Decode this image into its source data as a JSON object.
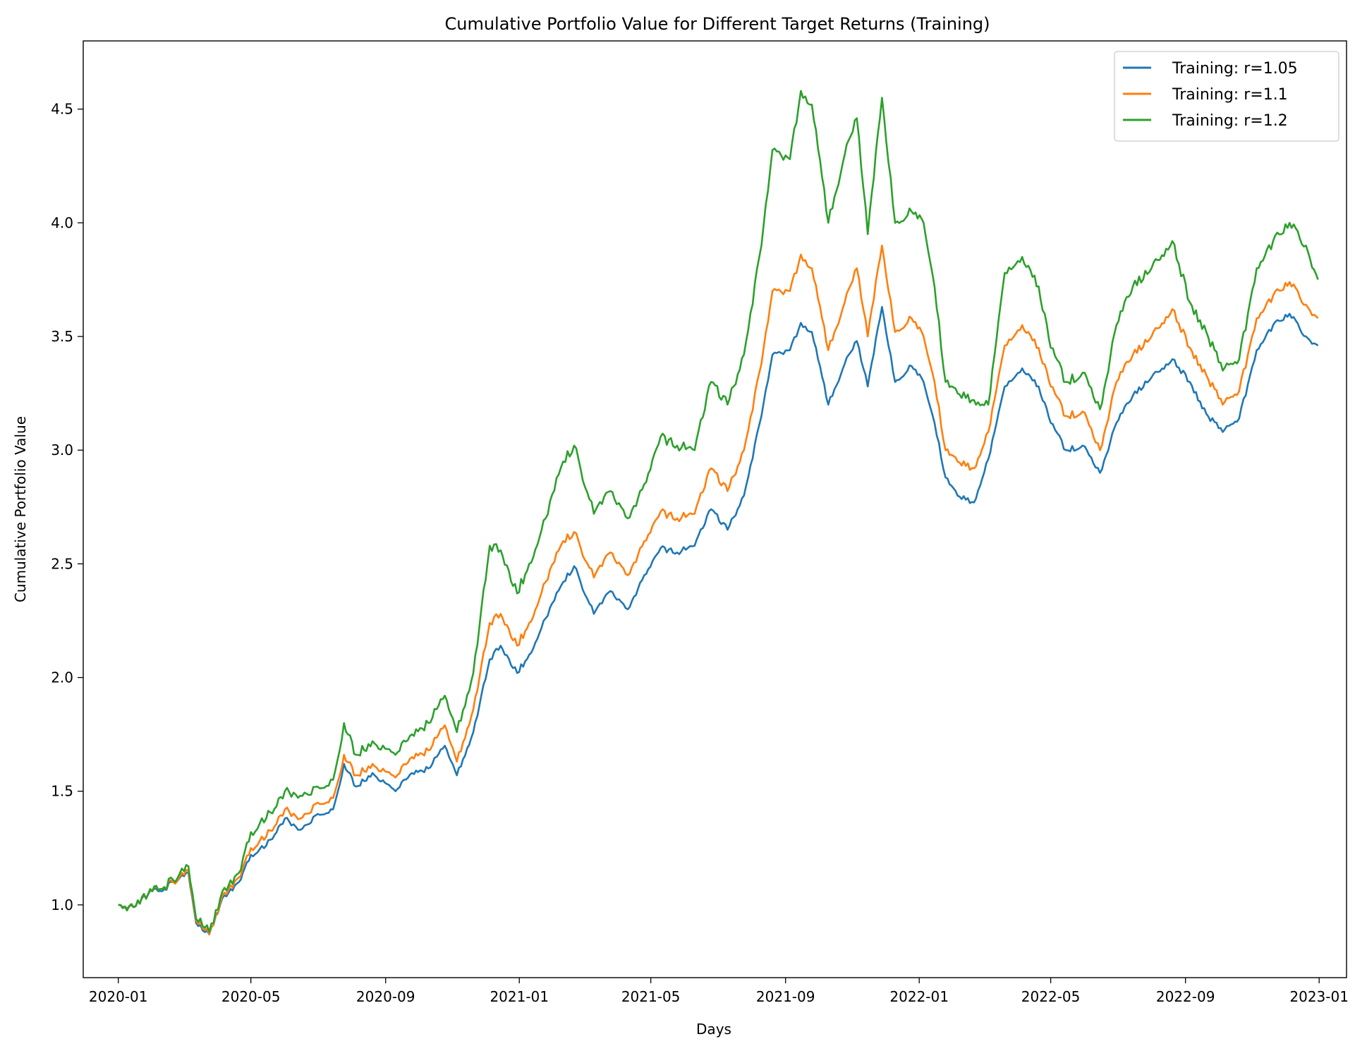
{
  "chart_data": {
    "type": "line",
    "title": "Cumulative Portfolio Value for Different Target Returns (Training)",
    "xlabel": "Days",
    "ylabel": "Cumulative Portfolio Value",
    "xlim": [
      "2019-11-30",
      "2023-01-26"
    ],
    "ylim": [
      0.68,
      4.8
    ],
    "xticks": [
      "2020-01",
      "2020-05",
      "2020-09",
      "2021-01",
      "2021-05",
      "2021-09",
      "2022-01",
      "2022-05",
      "2022-09",
      "2023-01"
    ],
    "yticks": [
      1.0,
      1.5,
      2.0,
      2.5,
      3.0,
      3.5,
      4.0,
      4.5
    ],
    "legend_position": "upper right",
    "grid": false,
    "series": [
      {
        "name": "Training: r=1.05",
        "color": "#1f77b4",
        "points": [
          [
            "2020-01-01",
            1.0
          ],
          [
            "2020-01-15",
            0.99
          ],
          [
            "2020-02-01",
            1.06
          ],
          [
            "2020-02-10",
            1.06
          ],
          [
            "2020-02-20",
            1.1
          ],
          [
            "2020-03-05",
            1.14
          ],
          [
            "2020-03-12",
            0.92
          ],
          [
            "2020-03-20",
            0.88
          ],
          [
            "2020-03-24",
            0.87
          ],
          [
            "2020-04-05",
            1.03
          ],
          [
            "2020-04-20",
            1.1
          ],
          [
            "2020-05-01",
            1.22
          ],
          [
            "2020-05-15",
            1.26
          ],
          [
            "2020-06-01",
            1.38
          ],
          [
            "2020-06-15",
            1.33
          ],
          [
            "2020-07-01",
            1.4
          ],
          [
            "2020-07-15",
            1.42
          ],
          [
            "2020-07-25",
            1.62
          ],
          [
            "2020-08-05",
            1.52
          ],
          [
            "2020-08-20",
            1.58
          ],
          [
            "2020-09-10",
            1.5
          ],
          [
            "2020-09-25",
            1.58
          ],
          [
            "2020-10-10",
            1.6
          ],
          [
            "2020-10-25",
            1.7
          ],
          [
            "2020-11-05",
            1.57
          ],
          [
            "2020-11-20",
            1.76
          ],
          [
            "2020-12-05",
            2.08
          ],
          [
            "2020-12-15",
            2.14
          ],
          [
            "2020-12-30",
            2.02
          ],
          [
            "2021-01-10",
            2.1
          ],
          [
            "2021-01-25",
            2.26
          ],
          [
            "2021-02-10",
            2.42
          ],
          [
            "2021-02-20",
            2.49
          ],
          [
            "2021-03-10",
            2.28
          ],
          [
            "2021-03-25",
            2.38
          ],
          [
            "2021-04-10",
            2.3
          ],
          [
            "2021-04-25",
            2.45
          ],
          [
            "2021-05-10",
            2.57
          ],
          [
            "2021-05-25",
            2.55
          ],
          [
            "2021-06-10",
            2.58
          ],
          [
            "2021-06-25",
            2.74
          ],
          [
            "2021-07-10",
            2.65
          ],
          [
            "2021-07-25",
            2.8
          ],
          [
            "2021-08-10",
            3.15
          ],
          [
            "2021-08-20",
            3.42
          ],
          [
            "2021-09-05",
            3.44
          ],
          [
            "2021-09-15",
            3.56
          ],
          [
            "2021-09-25",
            3.52
          ],
          [
            "2021-10-10",
            3.2
          ],
          [
            "2021-10-25",
            3.38
          ],
          [
            "2021-11-05",
            3.48
          ],
          [
            "2021-11-15",
            3.28
          ],
          [
            "2021-11-28",
            3.63
          ],
          [
            "2021-12-10",
            3.3
          ],
          [
            "2021-12-25",
            3.37
          ],
          [
            "2022-01-05",
            3.3
          ],
          [
            "2022-01-15",
            3.12
          ],
          [
            "2022-01-25",
            2.88
          ],
          [
            "2022-02-05",
            2.8
          ],
          [
            "2022-02-20",
            2.77
          ],
          [
            "2022-03-05",
            2.96
          ],
          [
            "2022-03-20",
            3.28
          ],
          [
            "2022-04-05",
            3.36
          ],
          [
            "2022-04-20",
            3.28
          ],
          [
            "2022-05-01",
            3.12
          ],
          [
            "2022-05-15",
            3.0
          ],
          [
            "2022-05-30",
            3.02
          ],
          [
            "2022-06-15",
            2.9
          ],
          [
            "2022-06-30",
            3.12
          ],
          [
            "2022-07-15",
            3.24
          ],
          [
            "2022-08-01",
            3.32
          ],
          [
            "2022-08-20",
            3.4
          ],
          [
            "2022-09-05",
            3.3
          ],
          [
            "2022-09-20",
            3.16
          ],
          [
            "2022-10-05",
            3.08
          ],
          [
            "2022-10-20",
            3.14
          ],
          [
            "2022-11-05",
            3.44
          ],
          [
            "2022-11-20",
            3.55
          ],
          [
            "2022-12-05",
            3.6
          ],
          [
            "2022-12-20",
            3.5
          ],
          [
            "2022-12-31",
            3.46
          ]
        ]
      },
      {
        "name": "Training: r=1.1",
        "color": "#ff7f0e",
        "points": [
          [
            "2020-01-01",
            1.0
          ],
          [
            "2020-01-15",
            0.99
          ],
          [
            "2020-02-01",
            1.06
          ],
          [
            "2020-02-10",
            1.07
          ],
          [
            "2020-02-20",
            1.1
          ],
          [
            "2020-03-05",
            1.15
          ],
          [
            "2020-03-12",
            0.93
          ],
          [
            "2020-03-20",
            0.89
          ],
          [
            "2020-03-24",
            0.87
          ],
          [
            "2020-04-05",
            1.04
          ],
          [
            "2020-04-20",
            1.12
          ],
          [
            "2020-05-01",
            1.25
          ],
          [
            "2020-05-15",
            1.3
          ],
          [
            "2020-06-01",
            1.42
          ],
          [
            "2020-06-15",
            1.38
          ],
          [
            "2020-07-01",
            1.45
          ],
          [
            "2020-07-15",
            1.47
          ],
          [
            "2020-07-25",
            1.66
          ],
          [
            "2020-08-05",
            1.57
          ],
          [
            "2020-08-20",
            1.62
          ],
          [
            "2020-09-10",
            1.56
          ],
          [
            "2020-09-25",
            1.65
          ],
          [
            "2020-10-10",
            1.68
          ],
          [
            "2020-10-25",
            1.79
          ],
          [
            "2020-11-05",
            1.63
          ],
          [
            "2020-11-20",
            1.86
          ],
          [
            "2020-12-05",
            2.24
          ],
          [
            "2020-12-15",
            2.28
          ],
          [
            "2020-12-30",
            2.14
          ],
          [
            "2021-01-10",
            2.24
          ],
          [
            "2021-01-25",
            2.42
          ],
          [
            "2021-02-10",
            2.6
          ],
          [
            "2021-02-20",
            2.64
          ],
          [
            "2021-03-10",
            2.44
          ],
          [
            "2021-03-25",
            2.55
          ],
          [
            "2021-04-10",
            2.45
          ],
          [
            "2021-04-25",
            2.6
          ],
          [
            "2021-05-10",
            2.73
          ],
          [
            "2021-05-25",
            2.7
          ],
          [
            "2021-06-10",
            2.72
          ],
          [
            "2021-06-25",
            2.92
          ],
          [
            "2021-07-10",
            2.82
          ],
          [
            "2021-07-25",
            3.0
          ],
          [
            "2021-08-10",
            3.38
          ],
          [
            "2021-08-20",
            3.7
          ],
          [
            "2021-09-05",
            3.7
          ],
          [
            "2021-09-15",
            3.86
          ],
          [
            "2021-09-25",
            3.8
          ],
          [
            "2021-10-10",
            3.44
          ],
          [
            "2021-10-25",
            3.65
          ],
          [
            "2021-11-05",
            3.8
          ],
          [
            "2021-11-15",
            3.5
          ],
          [
            "2021-11-28",
            3.9
          ],
          [
            "2021-12-10",
            3.52
          ],
          [
            "2021-12-25",
            3.58
          ],
          [
            "2022-01-05",
            3.5
          ],
          [
            "2022-01-15",
            3.3
          ],
          [
            "2022-01-25",
            3.0
          ],
          [
            "2022-02-05",
            2.95
          ],
          [
            "2022-02-20",
            2.92
          ],
          [
            "2022-03-05",
            3.08
          ],
          [
            "2022-03-20",
            3.46
          ],
          [
            "2022-04-05",
            3.55
          ],
          [
            "2022-04-20",
            3.45
          ],
          [
            "2022-05-01",
            3.28
          ],
          [
            "2022-05-15",
            3.15
          ],
          [
            "2022-05-30",
            3.17
          ],
          [
            "2022-06-15",
            3.0
          ],
          [
            "2022-06-30",
            3.3
          ],
          [
            "2022-07-15",
            3.42
          ],
          [
            "2022-08-01",
            3.5
          ],
          [
            "2022-08-20",
            3.62
          ],
          [
            "2022-09-05",
            3.45
          ],
          [
            "2022-09-20",
            3.33
          ],
          [
            "2022-10-05",
            3.2
          ],
          [
            "2022-10-20",
            3.26
          ],
          [
            "2022-11-05",
            3.58
          ],
          [
            "2022-11-20",
            3.68
          ],
          [
            "2022-12-05",
            3.74
          ],
          [
            "2022-12-20",
            3.64
          ],
          [
            "2022-12-31",
            3.58
          ]
        ]
      },
      {
        "name": "Training: r=1.2",
        "color": "#2ca02c",
        "points": [
          [
            "2020-01-01",
            1.0
          ],
          [
            "2020-01-15",
            0.99
          ],
          [
            "2020-02-01",
            1.06
          ],
          [
            "2020-02-10",
            1.07
          ],
          [
            "2020-02-20",
            1.11
          ],
          [
            "2020-03-05",
            1.17
          ],
          [
            "2020-03-12",
            0.94
          ],
          [
            "2020-03-20",
            0.9
          ],
          [
            "2020-03-24",
            0.88
          ],
          [
            "2020-04-05",
            1.06
          ],
          [
            "2020-04-20",
            1.14
          ],
          [
            "2020-05-01",
            1.32
          ],
          [
            "2020-05-15",
            1.38
          ],
          [
            "2020-06-01",
            1.5
          ],
          [
            "2020-06-15",
            1.48
          ],
          [
            "2020-07-01",
            1.52
          ],
          [
            "2020-07-15",
            1.55
          ],
          [
            "2020-07-25",
            1.8
          ],
          [
            "2020-08-05",
            1.66
          ],
          [
            "2020-08-20",
            1.72
          ],
          [
            "2020-09-10",
            1.66
          ],
          [
            "2020-09-25",
            1.75
          ],
          [
            "2020-10-10",
            1.8
          ],
          [
            "2020-10-25",
            1.92
          ],
          [
            "2020-11-05",
            1.76
          ],
          [
            "2020-11-20",
            2.02
          ],
          [
            "2020-12-05",
            2.58
          ],
          [
            "2020-12-15",
            2.56
          ],
          [
            "2020-12-30",
            2.37
          ],
          [
            "2021-01-10",
            2.5
          ],
          [
            "2021-01-25",
            2.7
          ],
          [
            "2021-02-10",
            2.95
          ],
          [
            "2021-02-20",
            3.02
          ],
          [
            "2021-03-10",
            2.72
          ],
          [
            "2021-03-25",
            2.82
          ],
          [
            "2021-04-10",
            2.7
          ],
          [
            "2021-04-25",
            2.85
          ],
          [
            "2021-05-10",
            3.06
          ],
          [
            "2021-05-25",
            3.02
          ],
          [
            "2021-06-10",
            3.0
          ],
          [
            "2021-06-25",
            3.3
          ],
          [
            "2021-07-10",
            3.2
          ],
          [
            "2021-07-25",
            3.42
          ],
          [
            "2021-08-10",
            3.9
          ],
          [
            "2021-08-20",
            4.32
          ],
          [
            "2021-09-05",
            4.28
          ],
          [
            "2021-09-15",
            4.58
          ],
          [
            "2021-09-25",
            4.52
          ],
          [
            "2021-10-10",
            4.0
          ],
          [
            "2021-10-25",
            4.3
          ],
          [
            "2021-11-05",
            4.46
          ],
          [
            "2021-11-15",
            3.95
          ],
          [
            "2021-11-28",
            4.55
          ],
          [
            "2021-12-10",
            4.0
          ],
          [
            "2021-12-25",
            4.05
          ],
          [
            "2022-01-05",
            4.0
          ],
          [
            "2022-01-15",
            3.72
          ],
          [
            "2022-01-25",
            3.3
          ],
          [
            "2022-02-05",
            3.25
          ],
          [
            "2022-02-20",
            3.22
          ],
          [
            "2022-03-05",
            3.2
          ],
          [
            "2022-03-20",
            3.78
          ],
          [
            "2022-04-05",
            3.85
          ],
          [
            "2022-04-20",
            3.72
          ],
          [
            "2022-05-01",
            3.45
          ],
          [
            "2022-05-15",
            3.3
          ],
          [
            "2022-05-30",
            3.34
          ],
          [
            "2022-06-15",
            3.18
          ],
          [
            "2022-06-30",
            3.55
          ],
          [
            "2022-07-15",
            3.72
          ],
          [
            "2022-08-01",
            3.8
          ],
          [
            "2022-08-20",
            3.92
          ],
          [
            "2022-09-05",
            3.65
          ],
          [
            "2022-09-20",
            3.52
          ],
          [
            "2022-10-05",
            3.35
          ],
          [
            "2022-10-20",
            3.4
          ],
          [
            "2022-11-05",
            3.8
          ],
          [
            "2022-11-20",
            3.92
          ],
          [
            "2022-12-05",
            4.0
          ],
          [
            "2022-12-20",
            3.9
          ],
          [
            "2022-12-31",
            3.75
          ]
        ]
      }
    ]
  }
}
